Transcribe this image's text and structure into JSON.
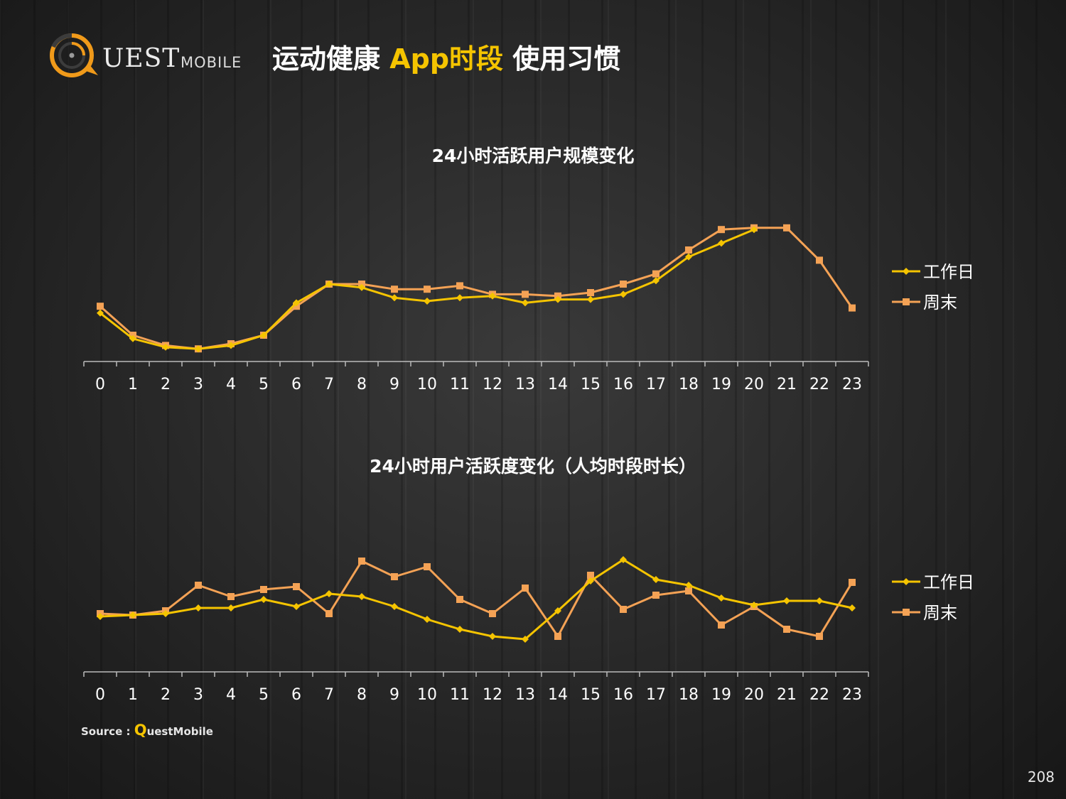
{
  "logo": {
    "text": "UEST",
    "subtext": "MOBILE",
    "ring_color": "#f09a1a",
    "dark_ring_color": "#3c3c3c"
  },
  "title": {
    "part1": "运动健康 ",
    "part2": "App时段",
    "part3": " 使用习惯"
  },
  "colors": {
    "weekday": "#f5c400",
    "weekend": "#f4a255",
    "axis": "#bbbbbb",
    "text": "#ffffff"
  },
  "chart_data": [
    {
      "type": "line",
      "title": "24小时活跃用户规模变化",
      "categories": [
        "0",
        "1",
        "2",
        "3",
        "4",
        "5",
        "6",
        "7",
        "8",
        "9",
        "10",
        "11",
        "12",
        "13",
        "14",
        "15",
        "16",
        "17",
        "18",
        "19",
        "20",
        "21",
        "22",
        "23"
      ],
      "ylim": [
        0,
        100
      ],
      "legend_position": "right",
      "grid": false,
      "series": [
        {
          "name": "工作日",
          "marker": "diamond",
          "values": [
            33,
            18,
            13,
            12,
            14,
            20,
            39,
            50,
            48,
            42,
            40,
            42,
            43,
            39,
            41,
            41,
            44,
            52,
            66,
            74,
            82,
            null,
            null,
            null
          ]
        },
        {
          "name": "周末",
          "marker": "square",
          "values": [
            37,
            20,
            14,
            12,
            15,
            20,
            37,
            50,
            50,
            47,
            47,
            49,
            44,
            44,
            43,
            45,
            50,
            56,
            70,
            82,
            83,
            83,
            64,
            36
          ]
        }
      ]
    },
    {
      "type": "line",
      "title": "24小时用户活跃度变化（人均时段时长）",
      "categories": [
        "0",
        "1",
        "2",
        "3",
        "4",
        "5",
        "6",
        "7",
        "8",
        "9",
        "10",
        "11",
        "12",
        "13",
        "14",
        "15",
        "16",
        "17",
        "18",
        "19",
        "20",
        "21",
        "22",
        "23"
      ],
      "ylim": [
        0,
        100
      ],
      "legend_position": "right",
      "grid": false,
      "series": [
        {
          "name": "工作日",
          "marker": "diamond",
          "values": [
            44,
            45,
            46,
            50,
            50,
            56,
            51,
            60,
            58,
            51,
            42,
            35,
            30,
            28,
            48,
            69,
            84,
            70,
            66,
            57,
            52,
            55,
            55,
            50
          ]
        },
        {
          "name": "周末",
          "marker": "square",
          "values": [
            46,
            45,
            48,
            66,
            58,
            63,
            65,
            46,
            83,
            72,
            79,
            56,
            46,
            64,
            30,
            73,
            49,
            59,
            62,
            38,
            51,
            35,
            30,
            68
          ]
        }
      ]
    }
  ],
  "source": {
    "prefix": "Source : ",
    "q": "Q",
    "rest": "uestMobile"
  },
  "page_number": "208"
}
